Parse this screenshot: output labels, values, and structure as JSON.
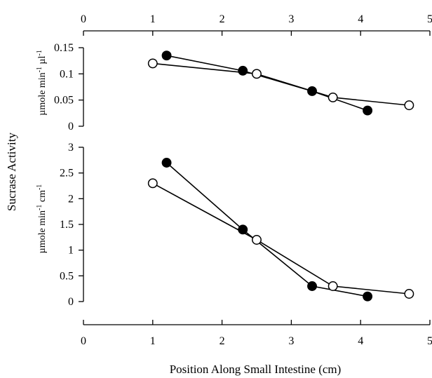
{
  "chart_data": [
    {
      "type": "line",
      "panel": "top",
      "xlabel": "",
      "ylabel": "µmole min-1 µl-1",
      "xlim": [
        0,
        5
      ],
      "ylim": [
        0,
        0.15
      ],
      "x_ticks": [
        "0",
        "1",
        "2",
        "3",
        "4",
        "5"
      ],
      "y_ticks": [
        "0",
        "0.05",
        "0.1",
        "0.15"
      ],
      "x_axis_position": "top",
      "series": [
        {
          "marker": "filled",
          "x": [
            1.2,
            2.3,
            3.3,
            4.1
          ],
          "y": [
            0.135,
            0.106,
            0.067,
            0.03
          ]
        },
        {
          "marker": "open",
          "x": [
            1.0,
            2.5,
            3.6,
            4.7
          ],
          "y": [
            0.12,
            0.1,
            0.055,
            0.04
          ]
        }
      ]
    },
    {
      "type": "line",
      "panel": "bottom",
      "xlabel": "Position Along Small Intestine (cm)",
      "ylabel": "µmole min-1 cm-1",
      "xlim": [
        0,
        5
      ],
      "ylim": [
        0,
        3
      ],
      "x_ticks": [
        "0",
        "1",
        "2",
        "3",
        "4",
        "5"
      ],
      "y_ticks": [
        "0",
        "0.5",
        "1",
        "1.5",
        "2",
        "2.5",
        "3"
      ],
      "x_axis_position": "bottom",
      "series": [
        {
          "marker": "filled",
          "x": [
            1.2,
            2.3,
            3.3,
            4.1
          ],
          "y": [
            2.7,
            1.4,
            0.3,
            0.1
          ]
        },
        {
          "marker": "open",
          "x": [
            1.0,
            2.5,
            3.6,
            4.7
          ],
          "y": [
            2.3,
            1.2,
            0.3,
            0.15
          ]
        }
      ]
    }
  ],
  "shared_ylabel": "Sucrase Activity",
  "top_ylabel": {
    "base": "µmole min",
    "sup1": "-1",
    "mid": " µl",
    "sup2": "-1"
  },
  "bottom_ylabel": {
    "base": "µmole min",
    "sup1": "-1",
    "mid": " cm",
    "sup2": "-1"
  }
}
